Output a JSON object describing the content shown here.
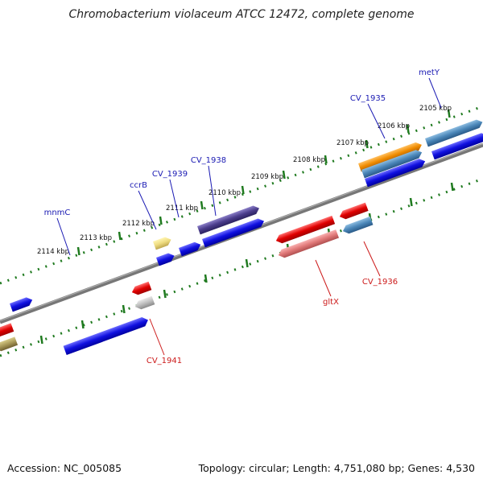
{
  "title": "Chromobacterium violaceum ATCC 12472, complete genome",
  "footer": {
    "accession": "Accession: NC_005085",
    "summary": "Topology: circular; Length: 4,751,080 bp; Genes: 4,530"
  },
  "ticks": [
    "2105 kbp",
    "2106 kbp",
    "2107 kbp",
    "2108 kbp",
    "2109 kbp",
    "2110 kbp",
    "2111 kbp",
    "2112 kbp",
    "2113 kbp",
    "2114 kbp"
  ],
  "genes_forward": [
    "metY",
    "CV_1935",
    "CV_1938",
    "CV_1939",
    "ccrB",
    "mnmC"
  ],
  "genes_reverse": [
    "CV_1936",
    "gltX",
    "CV_1941"
  ],
  "colors": {
    "forward_gene": "#1a1ae6",
    "reverse_gene": "#e61a1a",
    "forward_label": "#1a1ab3",
    "reverse_label": "#cc1a1a",
    "backbone": "#808080",
    "tick": "#1f7a1f"
  }
}
